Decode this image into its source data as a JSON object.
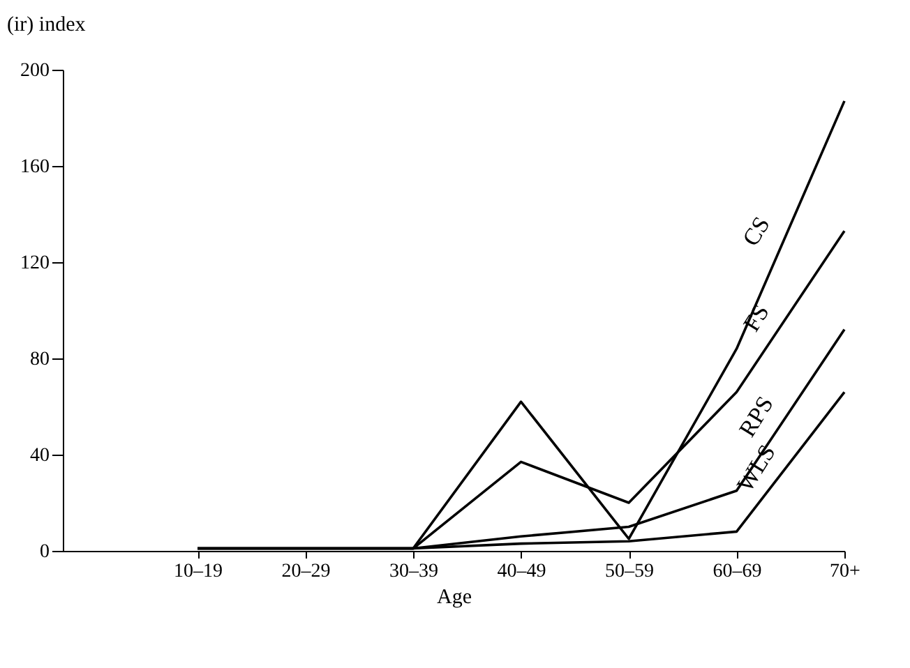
{
  "chart_data": {
    "type": "line",
    "ylabel": "(ir) index",
    "xlabel": "Age",
    "categories": [
      "10–19",
      "20–29",
      "30–39",
      "40–49",
      "50–59",
      "60–69",
      "70+"
    ],
    "series": [
      {
        "name": "CS",
        "color": "#000000",
        "values": [
          1,
          1,
          1,
          62,
          5,
          84,
          187
        ]
      },
      {
        "name": "FS",
        "color": "#000000",
        "values": [
          1,
          1,
          1,
          37,
          20,
          66,
          133
        ]
      },
      {
        "name": "RPS",
        "color": "#000000",
        "values": [
          1,
          1,
          1,
          6,
          10,
          25,
          92
        ]
      },
      {
        "name": "WLS",
        "color": "#000000",
        "values": [
          1,
          1,
          1,
          3,
          4,
          8,
          66
        ]
      }
    ],
    "ylim": [
      0,
      200
    ],
    "yticks": [
      0,
      40,
      80,
      120,
      160,
      200
    ],
    "grid": false,
    "legend": false,
    "marker": "none",
    "line_style": "solid"
  }
}
